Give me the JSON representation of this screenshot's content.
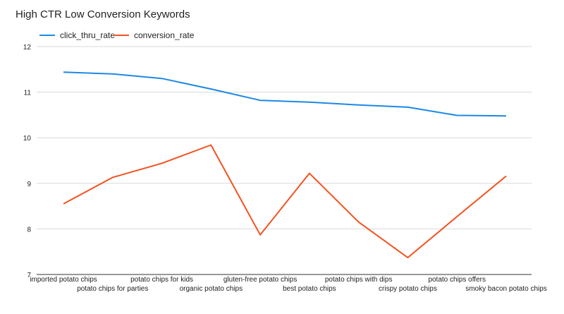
{
  "chart_data": {
    "type": "line",
    "title": "High CTR Low Conversion Keywords",
    "xlabel": "",
    "ylabel": "",
    "ylim": [
      7,
      12
    ],
    "yticks": [
      7,
      8,
      9,
      10,
      11,
      12
    ],
    "grid": true,
    "legend_position": "top-left",
    "categories": [
      "imported potato chips",
      "potato chips for parties",
      "potato chips for kids",
      "organic potato chips",
      "gluten-free potato chips",
      "best potato chips",
      "potato chips with dips",
      "crispy potato chips",
      "potato chips offers",
      "smoky bacon potato chips"
    ],
    "series": [
      {
        "name": "click_thru_rate",
        "color": "#1e88e5",
        "values": [
          11.44,
          11.4,
          11.3,
          11.07,
          10.82,
          10.78,
          10.72,
          10.67,
          10.49,
          10.48
        ]
      },
      {
        "name": "conversion_rate",
        "color": "#f4511e",
        "values": [
          8.55,
          9.13,
          9.44,
          9.84,
          7.87,
          9.22,
          8.15,
          7.37,
          8.27,
          9.16
        ]
      }
    ]
  }
}
